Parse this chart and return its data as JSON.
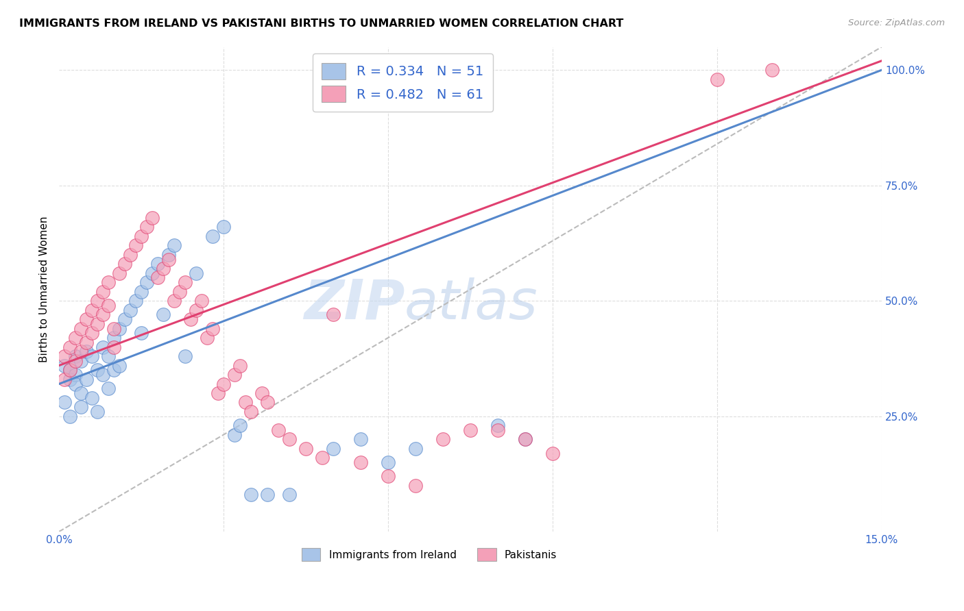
{
  "title": "IMMIGRANTS FROM IRELAND VS PAKISTANI BIRTHS TO UNMARRIED WOMEN CORRELATION CHART",
  "source": "Source: ZipAtlas.com",
  "ylabel": "Births to Unmarried Women",
  "xlim": [
    0.0,
    0.15
  ],
  "ylim": [
    0.0,
    1.05
  ],
  "y_ticks_right": [
    0.25,
    0.5,
    0.75,
    1.0
  ],
  "y_tick_labels_right": [
    "25.0%",
    "50.0%",
    "75.0%",
    "100.0%"
  ],
  "legend_r_ireland": "R = 0.334",
  "legend_n_ireland": "N = 51",
  "legend_r_pakistan": "R = 0.482",
  "legend_n_pakistan": "N = 61",
  "color_ireland": "#a8c4e8",
  "color_pakistan": "#f4a0b8",
  "color_ireland_line": "#5588cc",
  "color_pakistan_line": "#e04070",
  "color_diagonal": "#bbbbbb",
  "watermark_zip": "ZIP",
  "watermark_atlas": "atlas",
  "ireland_line_x0": 0.0,
  "ireland_line_y0": 0.32,
  "ireland_line_x1": 0.15,
  "ireland_line_y1": 1.0,
  "pakistan_line_x0": 0.0,
  "pakistan_line_y0": 0.36,
  "pakistan_line_x1": 0.15,
  "pakistan_line_y1": 1.02,
  "ireland_x": [
    0.001,
    0.001,
    0.002,
    0.002,
    0.002,
    0.003,
    0.003,
    0.003,
    0.004,
    0.004,
    0.004,
    0.005,
    0.005,
    0.006,
    0.006,
    0.007,
    0.007,
    0.008,
    0.008,
    0.009,
    0.009,
    0.01,
    0.01,
    0.011,
    0.011,
    0.012,
    0.013,
    0.014,
    0.015,
    0.015,
    0.016,
    0.017,
    0.018,
    0.019,
    0.02,
    0.021,
    0.023,
    0.025,
    0.028,
    0.03,
    0.032,
    0.033,
    0.035,
    0.038,
    0.042,
    0.05,
    0.055,
    0.06,
    0.065,
    0.08,
    0.085
  ],
  "ireland_y": [
    0.36,
    0.28,
    0.35,
    0.33,
    0.25,
    0.38,
    0.34,
    0.32,
    0.37,
    0.3,
    0.27,
    0.39,
    0.33,
    0.38,
    0.29,
    0.35,
    0.26,
    0.4,
    0.34,
    0.38,
    0.31,
    0.42,
    0.35,
    0.44,
    0.36,
    0.46,
    0.48,
    0.5,
    0.52,
    0.43,
    0.54,
    0.56,
    0.58,
    0.47,
    0.6,
    0.62,
    0.38,
    0.56,
    0.64,
    0.66,
    0.21,
    0.23,
    0.08,
    0.08,
    0.08,
    0.18,
    0.2,
    0.15,
    0.18,
    0.23,
    0.2
  ],
  "pakistan_x": [
    0.001,
    0.001,
    0.002,
    0.002,
    0.003,
    0.003,
    0.004,
    0.004,
    0.005,
    0.005,
    0.006,
    0.006,
    0.007,
    0.007,
    0.008,
    0.008,
    0.009,
    0.009,
    0.01,
    0.01,
    0.011,
    0.012,
    0.013,
    0.014,
    0.015,
    0.016,
    0.017,
    0.018,
    0.019,
    0.02,
    0.021,
    0.022,
    0.023,
    0.024,
    0.025,
    0.026,
    0.027,
    0.028,
    0.029,
    0.03,
    0.032,
    0.033,
    0.034,
    0.035,
    0.037,
    0.038,
    0.04,
    0.042,
    0.045,
    0.048,
    0.05,
    0.055,
    0.06,
    0.065,
    0.07,
    0.075,
    0.08,
    0.085,
    0.09,
    0.12,
    0.13
  ],
  "pakistan_y": [
    0.38,
    0.33,
    0.4,
    0.35,
    0.42,
    0.37,
    0.44,
    0.39,
    0.46,
    0.41,
    0.48,
    0.43,
    0.5,
    0.45,
    0.52,
    0.47,
    0.54,
    0.49,
    0.44,
    0.4,
    0.56,
    0.58,
    0.6,
    0.62,
    0.64,
    0.66,
    0.68,
    0.55,
    0.57,
    0.59,
    0.5,
    0.52,
    0.54,
    0.46,
    0.48,
    0.5,
    0.42,
    0.44,
    0.3,
    0.32,
    0.34,
    0.36,
    0.28,
    0.26,
    0.3,
    0.28,
    0.22,
    0.2,
    0.18,
    0.16,
    0.47,
    0.15,
    0.12,
    0.1,
    0.2,
    0.22,
    0.22,
    0.2,
    0.17,
    0.98,
    1.0
  ]
}
